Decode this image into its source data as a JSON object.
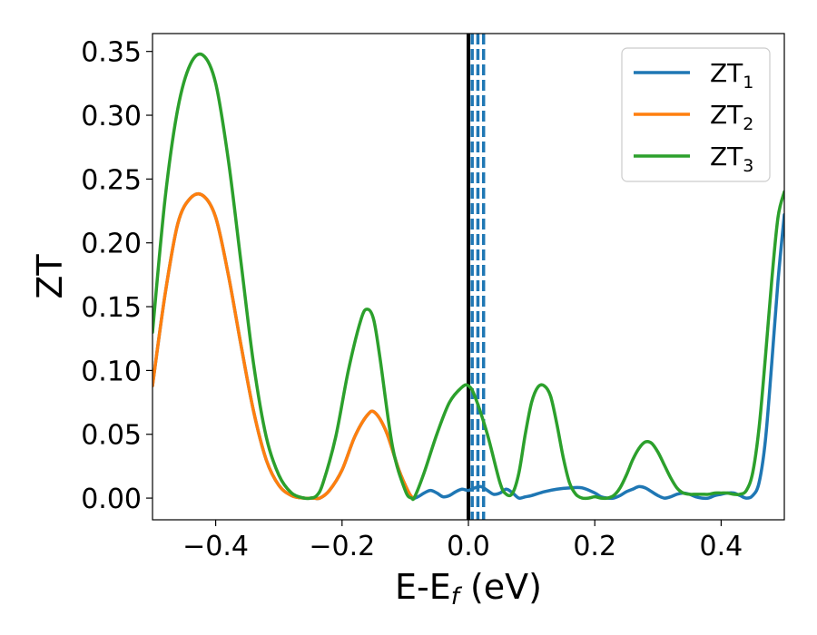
{
  "chart_data": {
    "type": "line",
    "xlabel_main": "E-E",
    "xlabel_sub": "f",
    "xlabel_unit": " (eV)",
    "ylabel": "ZT",
    "xlim": [
      -0.5,
      0.5
    ],
    "ylim": [
      -0.017,
      0.364
    ],
    "xticks": [
      -0.4,
      -0.2,
      0.0,
      0.2,
      0.4
    ],
    "xtick_labels": [
      "−0.4",
      "−0.2",
      "0.0",
      "0.2",
      "0.4"
    ],
    "yticks": [
      0.0,
      0.05,
      0.1,
      0.15,
      0.2,
      0.25,
      0.3,
      0.35
    ],
    "ytick_labels": [
      "0.00",
      "0.05",
      "0.10",
      "0.15",
      "0.20",
      "0.25",
      "0.30",
      "0.35"
    ],
    "grid": false,
    "legend_position": "top-right",
    "colors": {
      "zt1": "#1f77b4",
      "zt2": "#ff7f0e",
      "zt3": "#2ca02c",
      "fermi": "#000000"
    },
    "fermi_line_x": 0.0,
    "dashed_lines_x": [
      0.006,
      0.015,
      0.024
    ],
    "series": [
      {
        "name": "ZT",
        "name_sub": "1",
        "color": "#1f77b4",
        "x": [
          -0.5,
          -0.48,
          -0.46,
          -0.44,
          -0.42,
          -0.4,
          -0.38,
          -0.36,
          -0.34,
          -0.32,
          -0.3,
          -0.28,
          -0.26,
          -0.245,
          -0.235,
          -0.22,
          -0.2,
          -0.18,
          -0.16,
          -0.148,
          -0.13,
          -0.11,
          -0.095,
          -0.088,
          -0.08,
          -0.07,
          -0.06,
          -0.05,
          -0.04,
          -0.03,
          -0.02,
          -0.01,
          0.0,
          0.01,
          0.02,
          0.03,
          0.04,
          0.05,
          0.06,
          0.07,
          0.08,
          0.09,
          0.1,
          0.12,
          0.14,
          0.16,
          0.18,
          0.2,
          0.21,
          0.22,
          0.23,
          0.24,
          0.25,
          0.26,
          0.27,
          0.28,
          0.29,
          0.3,
          0.31,
          0.32,
          0.33,
          0.34,
          0.35,
          0.36,
          0.37,
          0.38,
          0.39,
          0.4,
          0.41,
          0.42,
          0.43,
          0.44,
          0.45,
          0.46,
          0.47,
          0.48,
          0.49,
          0.5
        ],
        "y": [
          0.088,
          0.16,
          0.215,
          0.235,
          0.237,
          0.22,
          0.175,
          0.12,
          0.068,
          0.03,
          0.01,
          0.002,
          0.0,
          0.0,
          0.0,
          0.006,
          0.022,
          0.048,
          0.065,
          0.067,
          0.052,
          0.022,
          0.005,
          0.0,
          0.001,
          0.004,
          0.006,
          0.004,
          0.001,
          0.002,
          0.005,
          0.007,
          0.006,
          0.008,
          0.009,
          0.006,
          0.003,
          0.004,
          0.007,
          0.004,
          0.0,
          0.001,
          0.002,
          0.005,
          0.007,
          0.008,
          0.008,
          0.004,
          0.001,
          0.0,
          0.0,
          0.002,
          0.005,
          0.007,
          0.009,
          0.008,
          0.005,
          0.002,
          0.0,
          0.001,
          0.003,
          0.004,
          0.003,
          0.001,
          0.0,
          0.0,
          0.002,
          0.003,
          0.004,
          0.004,
          0.002,
          0.0,
          0.002,
          0.012,
          0.045,
          0.105,
          0.17,
          0.222
        ]
      },
      {
        "name": "ZT",
        "name_sub": "2",
        "color": "#ff7f0e",
        "x": [
          -0.5,
          -0.48,
          -0.46,
          -0.44,
          -0.42,
          -0.4,
          -0.38,
          -0.36,
          -0.34,
          -0.32,
          -0.3,
          -0.28,
          -0.26,
          -0.245,
          -0.235,
          -0.22,
          -0.2,
          -0.18,
          -0.16,
          -0.148,
          -0.13,
          -0.11,
          -0.095,
          -0.088
        ],
        "y": [
          0.088,
          0.16,
          0.215,
          0.235,
          0.237,
          0.22,
          0.175,
          0.12,
          0.068,
          0.03,
          0.01,
          0.002,
          0.0,
          0.0,
          0.0,
          0.006,
          0.022,
          0.048,
          0.065,
          0.067,
          0.052,
          0.022,
          0.005,
          0.0
        ]
      },
      {
        "name": "ZT",
        "name_sub": "3",
        "color": "#2ca02c",
        "x": [
          -0.5,
          -0.48,
          -0.46,
          -0.44,
          -0.42,
          -0.4,
          -0.38,
          -0.36,
          -0.34,
          -0.32,
          -0.3,
          -0.28,
          -0.26,
          -0.25,
          -0.24,
          -0.23,
          -0.21,
          -0.19,
          -0.17,
          -0.16,
          -0.15,
          -0.14,
          -0.12,
          -0.1,
          -0.09,
          -0.085,
          -0.07,
          -0.05,
          -0.03,
          -0.01,
          0.0,
          0.01,
          0.03,
          0.05,
          0.06,
          0.07,
          0.08,
          0.09,
          0.1,
          0.11,
          0.12,
          0.13,
          0.14,
          0.15,
          0.16,
          0.17,
          0.18,
          0.19,
          0.2,
          0.21,
          0.22,
          0.23,
          0.24,
          0.25,
          0.26,
          0.27,
          0.28,
          0.29,
          0.3,
          0.31,
          0.32,
          0.33,
          0.34,
          0.35,
          0.36,
          0.37,
          0.38,
          0.39,
          0.4,
          0.41,
          0.42,
          0.43,
          0.44,
          0.45,
          0.46,
          0.47,
          0.48,
          0.49,
          0.5
        ],
        "y": [
          0.13,
          0.235,
          0.305,
          0.34,
          0.347,
          0.325,
          0.265,
          0.185,
          0.105,
          0.048,
          0.018,
          0.004,
          0.0,
          0.0,
          0.002,
          0.012,
          0.048,
          0.1,
          0.14,
          0.148,
          0.14,
          0.11,
          0.04,
          0.006,
          0.0,
          0.001,
          0.02,
          0.05,
          0.075,
          0.087,
          0.088,
          0.08,
          0.05,
          0.012,
          0.003,
          0.004,
          0.02,
          0.05,
          0.075,
          0.087,
          0.088,
          0.08,
          0.058,
          0.032,
          0.012,
          0.003,
          0.0,
          0.0,
          0.001,
          0.0,
          0.0,
          0.002,
          0.008,
          0.018,
          0.03,
          0.039,
          0.044,
          0.043,
          0.036,
          0.026,
          0.016,
          0.008,
          0.004,
          0.003,
          0.003,
          0.003,
          0.003,
          0.004,
          0.004,
          0.004,
          0.003,
          0.003,
          0.006,
          0.02,
          0.055,
          0.11,
          0.17,
          0.22,
          0.24
        ]
      }
    ]
  }
}
